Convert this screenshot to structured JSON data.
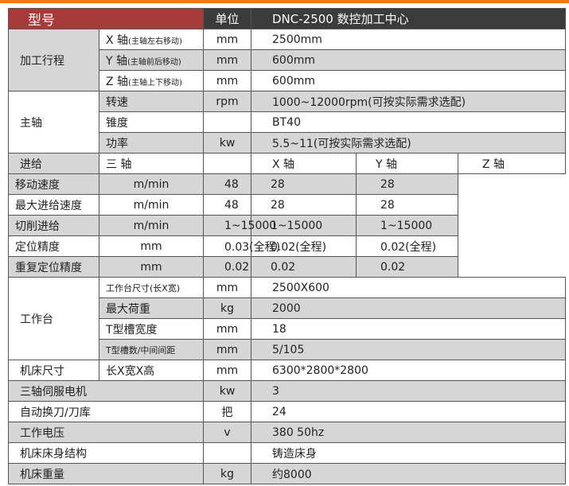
{
  "header": {
    "model_label": "型号",
    "unit_label": "单位",
    "model_name": "DNC-2500 数控加工中心"
  },
  "travel": {
    "group": "加工行程",
    "rows": [
      {
        "axis": "X 轴",
        "note": "(主轴左右移动)",
        "unit": "mm",
        "value": "2500mm"
      },
      {
        "axis": "Y 轴",
        "note": "(主轴前后移动)",
        "unit": "mm",
        "value": "600mm"
      },
      {
        "axis": "Z 轴",
        "note": "(主轴上下移动)",
        "unit": "mm",
        "value": "600mm"
      }
    ]
  },
  "spindle": {
    "group": "主轴",
    "rows": [
      {
        "label": "转速",
        "unit": "rpm",
        "value": "1000~12000rpm(可按实际需求选配)"
      },
      {
        "label": "锥度",
        "unit": "",
        "value": "BT40"
      },
      {
        "label": "功率",
        "unit": "kw",
        "value": "5.5~11(可按实际需求选配)"
      }
    ]
  },
  "feed": {
    "group": "进给",
    "head": {
      "label": "三 轴",
      "x": "X 轴",
      "y": "Y 轴",
      "z": "Z 轴"
    },
    "rows": [
      {
        "label": "移动速度",
        "unit": "m/min",
        "x": "48",
        "y": "28",
        "z": "28"
      },
      {
        "label": "最大进给速度",
        "unit": "m/min",
        "x": "48",
        "y": "28",
        "z": "28"
      },
      {
        "label": "切削进给",
        "unit": "m/min",
        "x": "1~15000",
        "y": "1~15000",
        "z": "1~15000"
      },
      {
        "label": "定位精度",
        "unit": "mm",
        "x": "0.03(全程)",
        "y": "0.02(全程)",
        "z": "0.02(全程)"
      },
      {
        "label": "重复定位精度",
        "unit": "mm",
        "x": "0.02",
        "y": "0.02",
        "z": "0.02"
      }
    ]
  },
  "table_section": {
    "group": "工作台",
    "rows": [
      {
        "label": "工作台尺寸(长X宽)",
        "unit": "mm",
        "value": "2500X600"
      },
      {
        "label": "最大荷重",
        "unit": "kg",
        "value": "2000"
      },
      {
        "label": "T型槽宽度",
        "unit": "mm",
        "value": "18"
      },
      {
        "label": "T型槽数/中间间距",
        "unit": "mm",
        "value": "5/105"
      }
    ]
  },
  "size": {
    "group": "机床尺寸",
    "label": "长X宽X高",
    "unit": "mm",
    "value": "6300*2800*2800"
  },
  "misc": [
    {
      "label": "三轴伺服电机",
      "unit": "kw",
      "value": "3"
    },
    {
      "label": "自动换刀/刀库",
      "unit": "把",
      "value": "24"
    },
    {
      "label": "工作电压",
      "unit": "v",
      "value": "380 50hz"
    },
    {
      "label": "机床床身结构",
      "unit": "",
      "value": "铸造床身"
    },
    {
      "label": "机床重量",
      "unit": "kg",
      "value": "约8000"
    }
  ],
  "colors": {
    "accent": "#f07a1a",
    "header_red": "#a83a3a",
    "header_dark": "#3b3b3b",
    "row_grey": "#d6d6d6"
  }
}
